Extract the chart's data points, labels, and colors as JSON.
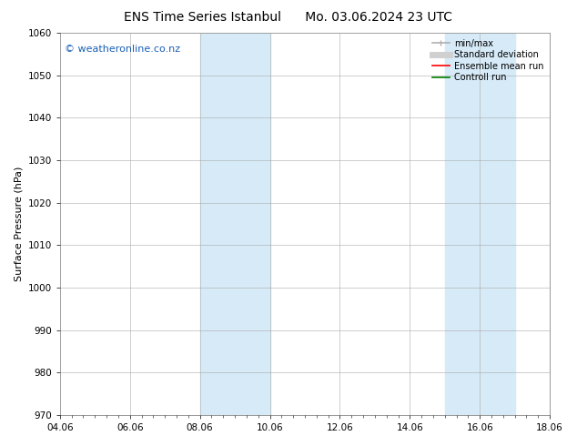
{
  "title1": "ENS Time Series Istanbul",
  "title2": "Mo. 03.06.2024 23 UTC",
  "ylabel": "Surface Pressure (hPa)",
  "ylim": [
    970,
    1060
  ],
  "yticks": [
    970,
    980,
    990,
    1000,
    1010,
    1020,
    1030,
    1040,
    1050,
    1060
  ],
  "xlim": [
    0,
    14
  ],
  "xtick_labels": [
    "04.06",
    "06.06",
    "08.06",
    "10.06",
    "12.06",
    "14.06",
    "16.06",
    "18.06"
  ],
  "xtick_positions": [
    0,
    2,
    4,
    6,
    8,
    10,
    12,
    14
  ],
  "shaded_bands": [
    {
      "x_start": 4,
      "x_end": 6
    },
    {
      "x_start": 11,
      "x_end": 13
    }
  ],
  "shaded_color": "#d6eaf8",
  "watermark_text": "© weatheronline.co.nz",
  "watermark_color": "#1a5fb4",
  "watermark_fontsize": 8,
  "legend_entries": [
    {
      "label": "min/max",
      "color": "#b0b0b0",
      "lw": 1.2
    },
    {
      "label": "Standard deviation",
      "color": "#d0d0d0",
      "lw": 5
    },
    {
      "label": "Ensemble mean run",
      "color": "red",
      "lw": 1.2
    },
    {
      "label": "Controll run",
      "color": "green",
      "lw": 1.2
    }
  ],
  "bg_color": "#ffffff",
  "grid_color": "#aaaaaa",
  "title_fontsize": 10,
  "ylabel_fontsize": 8,
  "tick_fontsize": 7.5,
  "legend_fontsize": 7,
  "minor_x_count": 6
}
